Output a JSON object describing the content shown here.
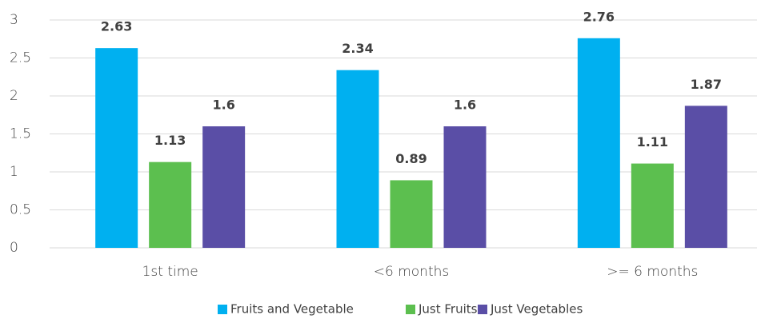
{
  "chart_data": {
    "type": "bar",
    "categories": [
      "1st time",
      "<6 months",
      ">= 6 months"
    ],
    "series": [
      {
        "name": "Fruits and Vegetable",
        "color": "#00b0f0",
        "values": [
          2.63,
          2.34,
          2.76
        ]
      },
      {
        "name": "Just Fruits",
        "color": "#5cbf4f",
        "values": [
          1.13,
          0.89,
          1.11
        ]
      },
      {
        "name": "Just Vegetables",
        "color": "#5a4ea6",
        "values": [
          1.6,
          1.6,
          1.87
        ]
      }
    ],
    "ylim": [
      0,
      3
    ],
    "yticks": [
      0,
      0.5,
      1,
      1.5,
      2,
      2.5,
      3
    ],
    "grid": true,
    "legend": "bottom"
  }
}
